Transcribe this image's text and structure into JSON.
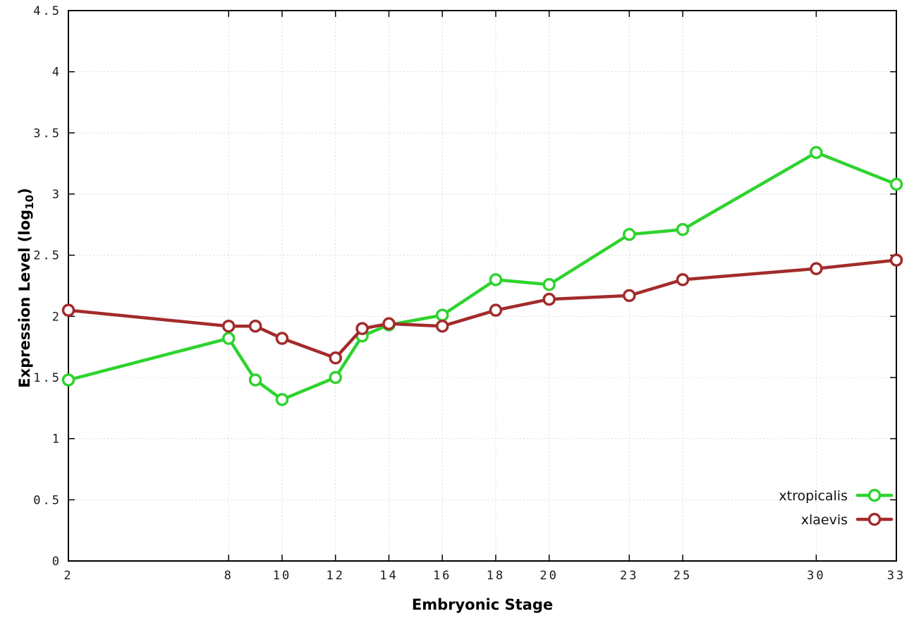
{
  "chart_data": {
    "type": "line",
    "title": "",
    "xlabel": "Embryonic Stage",
    "ylabel": {
      "main": "Expression Level (log",
      "sub": "10",
      "end": ")"
    },
    "x": [
      2,
      8,
      9,
      10,
      12,
      13,
      14,
      16,
      18,
      20,
      23,
      25,
      30,
      33
    ],
    "series": [
      {
        "name": "xtropicalis",
        "color": "#2ed32e",
        "values": [
          1.48,
          1.82,
          1.48,
          1.32,
          1.5,
          1.84,
          1.93,
          2.01,
          2.3,
          2.26,
          2.67,
          2.71,
          3.34,
          3.08
        ]
      },
      {
        "name": "xlaevis",
        "color": "#a32b2b",
        "values": [
          2.05,
          1.92,
          1.92,
          1.82,
          1.66,
          1.9,
          1.94,
          1.92,
          2.05,
          2.14,
          2.17,
          2.3,
          2.39,
          2.46
        ]
      }
    ],
    "xlim": [
      2,
      33
    ],
    "ylim": [
      0,
      4.5
    ],
    "xticks": [
      2,
      8,
      10,
      12,
      14,
      16,
      18,
      20,
      23,
      25,
      30,
      33
    ],
    "xtick_labels": [
      "2",
      "8",
      "10",
      "12",
      "14",
      "16",
      "18",
      "20",
      "23",
      "25",
      "30",
      "33"
    ],
    "yticks": [
      0,
      0.5,
      1,
      1.5,
      2,
      2.5,
      3,
      3.5,
      4,
      4.5
    ],
    "ytick_labels": [
      "0",
      "0.5",
      "1",
      "1.5",
      "2",
      "2.5",
      "3",
      "3.5",
      "4",
      "4.5"
    ],
    "grid": true,
    "legend_position": "bottom-right",
    "colors": {
      "background": "#ffffff",
      "axis": "#000000",
      "grid": "#dcdcdc",
      "marker_fill": "#ffffff"
    }
  }
}
